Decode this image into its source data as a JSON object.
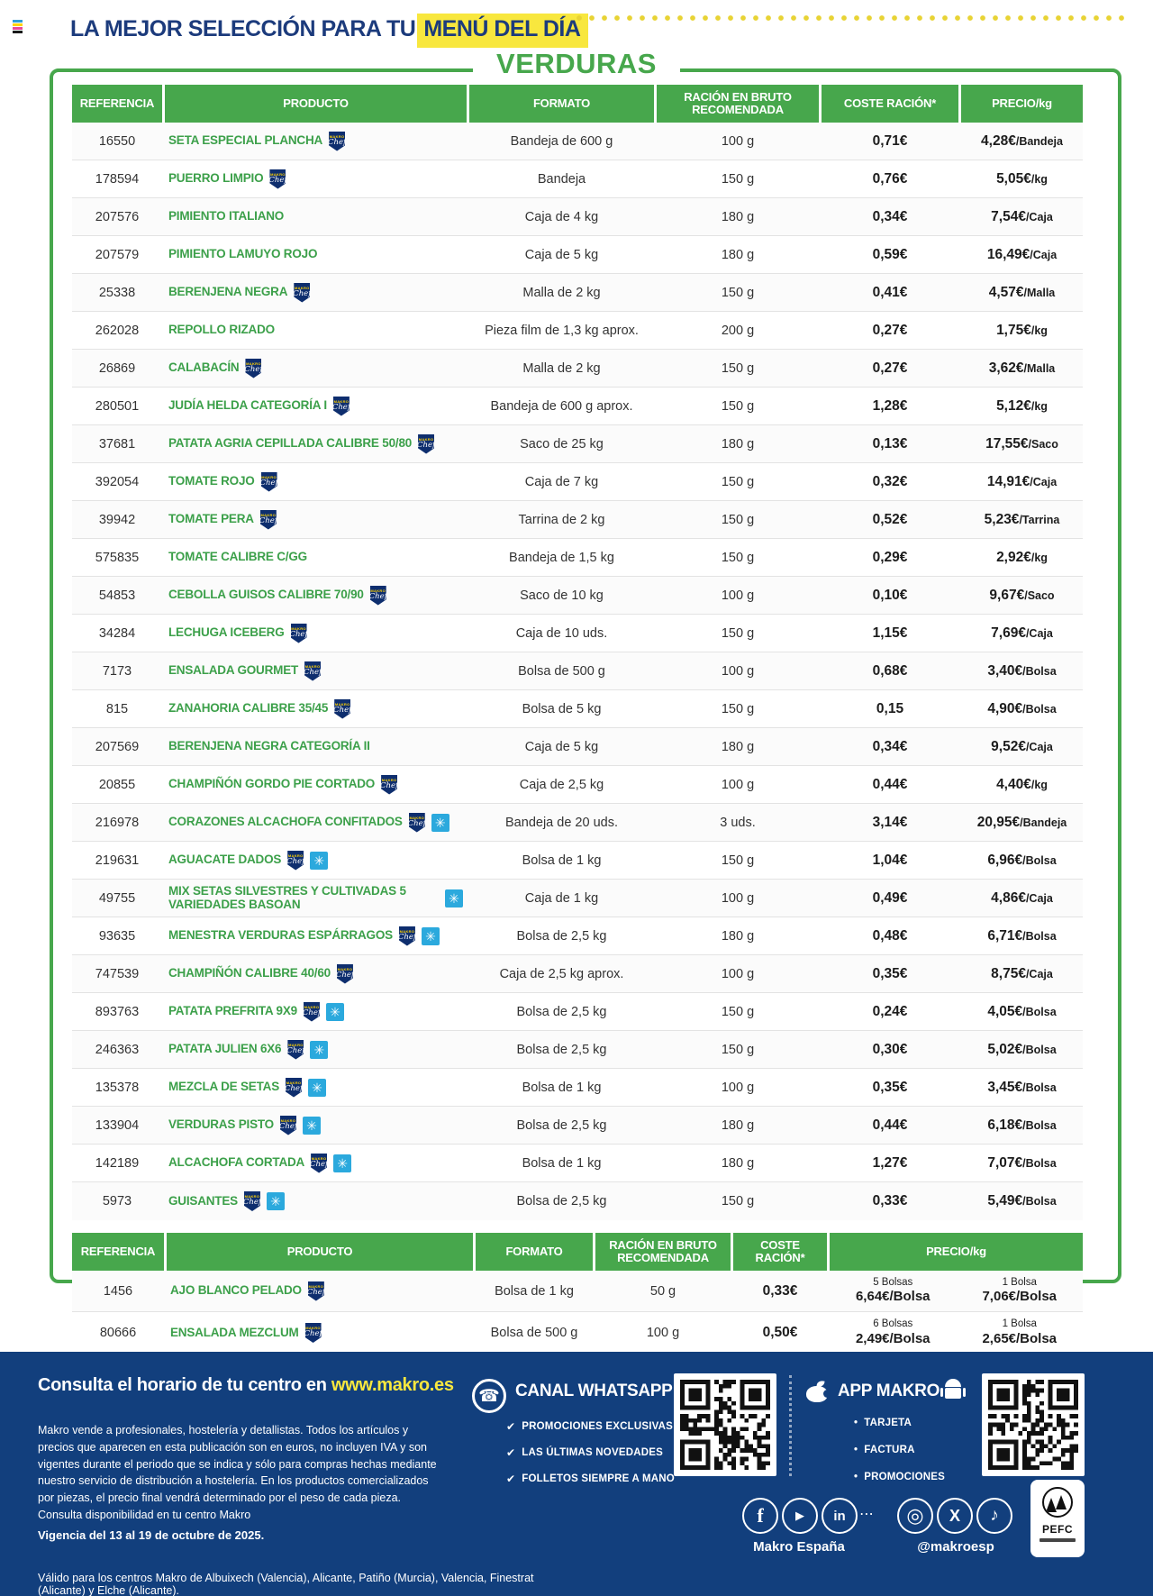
{
  "colors": {
    "green": "#47a74c",
    "navy": "#1c3b7c",
    "yellow": "#f8e73e",
    "footer_blue": "#123f7d",
    "frozen_blue": "#2ba9dd"
  },
  "header": {
    "title_prefix": "LA MEJOR SELECCIÓN PARA TU",
    "title_highlight": "MENÚ DEL DÍA"
  },
  "section_title": "VERDURAS",
  "badges": {
    "chef_top": "MAKRO",
    "chef_script": "Chef"
  },
  "icons": {
    "frozen": "✳",
    "check": "✔",
    "bullet": "•",
    "phone": "☎",
    "facebook": "f",
    "youtube": "▶",
    "linkedin": "in",
    "instagram": "◎",
    "x": "X",
    "tiktok": "♪",
    "dots": "⋯"
  },
  "table1": {
    "columns": [
      "REFERENCIA",
      "PRODUCTO",
      "FORMATO",
      "RACIÓN EN BRUTO RECOMENDADA",
      "COSTE RACIÓN*",
      "PRECIO/kg"
    ],
    "rows": [
      {
        "ref": "16550",
        "name": "SETA ESPECIAL PLANCHA",
        "chef": true,
        "frozen": false,
        "formato": "Bandeja de 600 g",
        "racion": "100 g",
        "coste": "0,71€",
        "precio": "4,28€",
        "precio_unit": "/Bandeja"
      },
      {
        "ref": "178594",
        "name": "PUERRO LIMPIO",
        "chef": true,
        "frozen": false,
        "formato": "Bandeja",
        "racion": "150 g",
        "coste": "0,76€",
        "precio": "5,05€",
        "precio_unit": "/kg"
      },
      {
        "ref": "207576",
        "name": "PIMIENTO ITALIANO",
        "chef": false,
        "frozen": false,
        "formato": "Caja de 4 kg",
        "racion": "180 g",
        "coste": "0,34€",
        "precio": "7,54€",
        "precio_unit": "/Caja"
      },
      {
        "ref": "207579",
        "name": "PIMIENTO LAMUYO ROJO",
        "chef": false,
        "frozen": false,
        "formato": "Caja de 5 kg",
        "racion": "180 g",
        "coste": "0,59€",
        "precio": "16,49€",
        "precio_unit": "/Caja"
      },
      {
        "ref": "25338",
        "name": "BERENJENA NEGRA",
        "chef": true,
        "frozen": false,
        "formato": "Malla de 2 kg",
        "racion": "150 g",
        "coste": "0,41€",
        "precio": "4,57€",
        "precio_unit": "/Malla"
      },
      {
        "ref": "262028",
        "name": "REPOLLO RIZADO",
        "chef": false,
        "frozen": false,
        "formato": "Pieza film de 1,3 kg aprox.",
        "racion": "200 g",
        "coste": "0,27€",
        "precio": "1,75€",
        "precio_unit": "/kg"
      },
      {
        "ref": "26869",
        "name": "CALABACÍN",
        "chef": true,
        "frozen": false,
        "formato": "Malla de 2 kg",
        "racion": "150 g",
        "coste": "0,27€",
        "precio": "3,62€",
        "precio_unit": "/Malla"
      },
      {
        "ref": "280501",
        "name": "JUDÍA HELDA CATEGORÍA I",
        "chef": true,
        "frozen": false,
        "formato": "Bandeja de 600 g aprox.",
        "racion": "150 g",
        "coste": "1,28€",
        "precio": "5,12€",
        "precio_unit": "/kg"
      },
      {
        "ref": "37681",
        "name": "PATATA AGRIA CEPILLADA CALIBRE 50/80",
        "chef": true,
        "frozen": false,
        "formato": "Saco de 25 kg",
        "racion": "180 g",
        "coste": "0,13€",
        "precio": "17,55€",
        "precio_unit": "/Saco"
      },
      {
        "ref": "392054",
        "name": "TOMATE ROJO",
        "chef": true,
        "frozen": false,
        "formato": "Caja de 7 kg",
        "racion": "150 g",
        "coste": "0,32€",
        "precio": "14,91€",
        "precio_unit": "/Caja"
      },
      {
        "ref": "39942",
        "name": "TOMATE PERA",
        "chef": true,
        "frozen": false,
        "formato": "Tarrina de 2 kg",
        "racion": "150 g",
        "coste": "0,52€",
        "precio": "5,23€",
        "precio_unit": "/Tarrina"
      },
      {
        "ref": "575835",
        "name": "TOMATE CALIBRE C/GG",
        "chef": false,
        "frozen": false,
        "formato": "Bandeja de 1,5 kg",
        "racion": "150 g",
        "coste": "0,29€",
        "precio": "2,92€",
        "precio_unit": "/kg"
      },
      {
        "ref": "54853",
        "name": "CEBOLLA GUISOS CALIBRE 70/90",
        "chef": true,
        "frozen": false,
        "formato": "Saco de 10 kg",
        "racion": "100 g",
        "coste": "0,10€",
        "precio": "9,67€",
        "precio_unit": "/Saco"
      },
      {
        "ref": "34284",
        "name": "LECHUGA ICEBERG",
        "chef": true,
        "frozen": false,
        "formato": "Caja de 10 uds.",
        "racion": "150 g",
        "coste": "1,15€",
        "precio": "7,69€",
        "precio_unit": "/Caja"
      },
      {
        "ref": "7173",
        "name": "ENSALADA GOURMET",
        "chef": true,
        "frozen": false,
        "formato": "Bolsa de 500 g",
        "racion": "100 g",
        "coste": "0,68€",
        "precio": "3,40€",
        "precio_unit": "/Bolsa"
      },
      {
        "ref": "815",
        "name": "ZANAHORIA CALIBRE 35/45",
        "chef": true,
        "frozen": false,
        "formato": "Bolsa de 5 kg",
        "racion": "150 g",
        "coste": "0,15",
        "precio": "4,90€",
        "precio_unit": "/Bolsa"
      },
      {
        "ref": "207569",
        "name": "BERENJENA NEGRA CATEGORÍA II",
        "chef": false,
        "frozen": false,
        "formato": "Caja de 5 kg",
        "racion": "180 g",
        "coste": "0,34€",
        "precio": "9,52€",
        "precio_unit": "/Caja"
      },
      {
        "ref": "20855",
        "name": "CHAMPIÑÓN GORDO PIE CORTADO",
        "chef": true,
        "frozen": false,
        "formato": "Caja de 2,5 kg",
        "racion": "100 g",
        "coste": "0,44€",
        "precio": "4,40€",
        "precio_unit": "/kg"
      },
      {
        "ref": "216978",
        "name": "CORAZONES ALCACHOFA CONFITADOS",
        "chef": true,
        "frozen": true,
        "formato": "Bandeja de 20 uds.",
        "racion": "3 uds.",
        "coste": "3,14€",
        "precio": "20,95€",
        "precio_unit": "/Bandeja"
      },
      {
        "ref": "219631",
        "name": "AGUACATE DADOS",
        "chef": true,
        "frozen": true,
        "formato": "Bolsa de 1 kg",
        "racion": "150 g",
        "coste": "1,04€",
        "precio": "6,96€",
        "precio_unit": "/Bolsa"
      },
      {
        "ref": "49755",
        "name": "MIX SETAS SILVESTRES Y CULTIVADAS 5 VARIEDADES BASOAN",
        "chef": false,
        "frozen": true,
        "formato": "Caja de 1 kg",
        "racion": "100 g",
        "coste": "0,49€",
        "precio": "4,86€",
        "precio_unit": "/Caja"
      },
      {
        "ref": "93635",
        "name": "MENESTRA VERDURAS ESPÁRRAGOS",
        "chef": true,
        "frozen": true,
        "formato": "Bolsa de 2,5 kg",
        "racion": "180 g",
        "coste": "0,48€",
        "precio": "6,71€",
        "precio_unit": "/Bolsa"
      },
      {
        "ref": "747539",
        "name": "CHAMPIÑÓN CALIBRE 40/60",
        "chef": true,
        "frozen": false,
        "formato": "Caja de 2,5 kg aprox.",
        "racion": "100 g",
        "coste": "0,35€",
        "precio": "8,75€",
        "precio_unit": "/Caja"
      },
      {
        "ref": "893763",
        "name": "PATATA PREFRITA 9X9",
        "chef": true,
        "frozen": true,
        "formato": "Bolsa de 2,5 kg",
        "racion": "150 g",
        "coste": "0,24€",
        "precio": "4,05€",
        "precio_unit": "/Bolsa"
      },
      {
        "ref": "246363",
        "name": "PATATA JULIEN 6X6",
        "chef": true,
        "frozen": true,
        "formato": "Bolsa de 2,5 kg",
        "racion": "150 g",
        "coste": "0,30€",
        "precio": "5,02€",
        "precio_unit": "/Bolsa"
      },
      {
        "ref": "135378",
        "name": "MEZCLA DE SETAS",
        "chef": true,
        "frozen": true,
        "formato": "Bolsa de 1 kg",
        "racion": "100 g",
        "coste": "0,35€",
        "precio": "3,45€",
        "precio_unit": "/Bolsa"
      },
      {
        "ref": "133904",
        "name": "VERDURAS PISTO",
        "chef": true,
        "frozen": true,
        "formato": "Bolsa de 2,5 kg",
        "racion": "180 g",
        "coste": "0,44€",
        "precio": "6,18€",
        "precio_unit": "/Bolsa"
      },
      {
        "ref": "142189",
        "name": "ALCACHOFA CORTADA",
        "chef": true,
        "frozen": true,
        "formato": "Bolsa de 1 kg",
        "racion": "180 g",
        "coste": "1,27€",
        "precio": "7,07€",
        "precio_unit": "/Bolsa"
      },
      {
        "ref": "5973",
        "name": "GUISANTES",
        "chef": true,
        "frozen": true,
        "formato": "Bolsa de 2,5 kg",
        "racion": "150 g",
        "coste": "0,33€",
        "precio": "5,49€",
        "precio_unit": "/Bolsa"
      }
    ]
  },
  "table2": {
    "columns": [
      "REFERENCIA",
      "PRODUCTO",
      "FORMATO",
      "RACIÓN EN BRUTO RECOMENDADA",
      "COSTE RACIÓN*",
      "PRECIO/kg"
    ],
    "rows": [
      {
        "ref": "1456",
        "name": "AJO BLANCO PELADO",
        "chef": true,
        "frozen": false,
        "formato": "Bolsa de 1 kg",
        "racion": "50 g",
        "coste": "0,33€",
        "bulk_label": "5 Bolsas",
        "bulk_price": "6,64€/Bolsa",
        "unit_label": "1 Bolsa",
        "unit_price": "7,06€/Bolsa"
      },
      {
        "ref": "80666",
        "name": "ENSALADA MEZCLUM",
        "chef": true,
        "frozen": false,
        "formato": "Bolsa de 500 g",
        "racion": "100 g",
        "coste": "0,50€",
        "bulk_label": "6 Bolsas",
        "bulk_price": "2,49€/Bolsa",
        "unit_label": "1 Bolsa",
        "unit_price": "2,65€/Bolsa"
      }
    ]
  },
  "footer": {
    "hours_text": "Consulta el horario de tu centro en",
    "hours_link": "www.makro.es",
    "legal": "Makro vende a profesionales, hostelería y detallistas. Todos los artículos y precios que aparecen en esta publicación son en euros, no incluyen IVA y son vigentes durante el periodo que se indica y sólo para compras hechas mediante nuestro servicio de distribución a hostelería. En los productos comercializados por piezas, el precio final vendrá determinado por el peso de cada pieza. Consulta disponibilidad en tu centro Makro",
    "validity": "Vigencia del 13 al 19 de octubre de 2025.",
    "centers": "Válido para los centros Makro de Albuixech (Valencia), Alicante, Patiño (Murcia), Valencia, Finestrat (Alicante) y Elche (Alicante).",
    "whatsapp": {
      "title": "CANAL WHATSAPP",
      "items": [
        "PROMOCIONES EXCLUSIVAS",
        "LAS ÚLTIMAS NOVEDADES",
        "FOLLETOS SIEMPRE A MANO"
      ]
    },
    "app": {
      "title": "APP MAKRO",
      "items": [
        "TARJETA",
        "FACTURA",
        "PROMOCIONES"
      ]
    },
    "social_left_label": "Makro España",
    "social_right_label": "@makroesp",
    "pefc_label": "PEFC"
  }
}
